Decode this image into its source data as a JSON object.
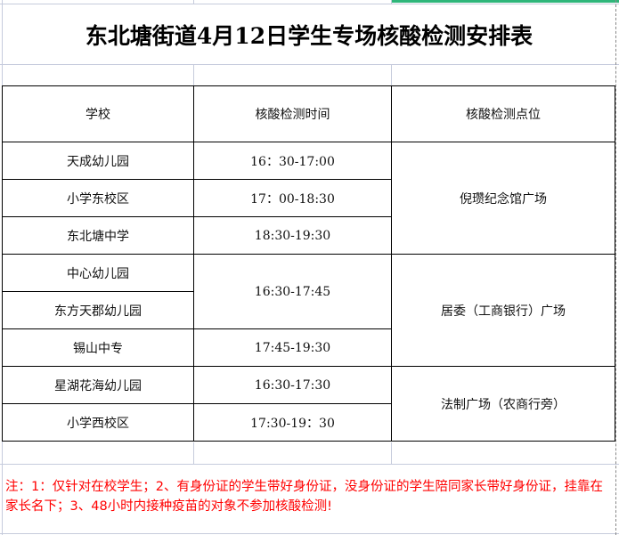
{
  "title": "东北塘街道4月12日学生专场核酸检测安排表",
  "headers": [
    "学校",
    "核酸检测时间",
    "核酸检测点位"
  ],
  "rows": [
    {
      "school": "天成幼儿园",
      "time": "16：30-17:00"
    },
    {
      "school": "小学东校区",
      "time": "17：00-18:30"
    },
    {
      "school": "东北塘中学",
      "time": "18:30-19:30"
    },
    {
      "school": "中心幼儿园",
      "time": "16:30-17:45"
    },
    {
      "school": "东方天郡幼儿园"
    },
    {
      "school": "锡山中专",
      "time": "17:45-19:30"
    },
    {
      "school": "星湖花海幼儿园",
      "time": "16:30-17:30"
    },
    {
      "school": "小学西校区",
      "time": "17:30-19：30"
    }
  ],
  "locations": [
    "倪瓒纪念馆广场",
    "居委（工商银行）广场",
    "法制广场（农商行旁）"
  ],
  "note": "注：1：仅针对在校学生；2、有身份证的学生带好身份证，没身份证的学生陪同家长带好身份证，挂靠在家长名下；3、48小时内接种疫苗的对象不参加核酸检测!",
  "colors": {
    "note": "#ff0000",
    "selection": "#2fb67a",
    "gridline": "#c6cbdc"
  }
}
